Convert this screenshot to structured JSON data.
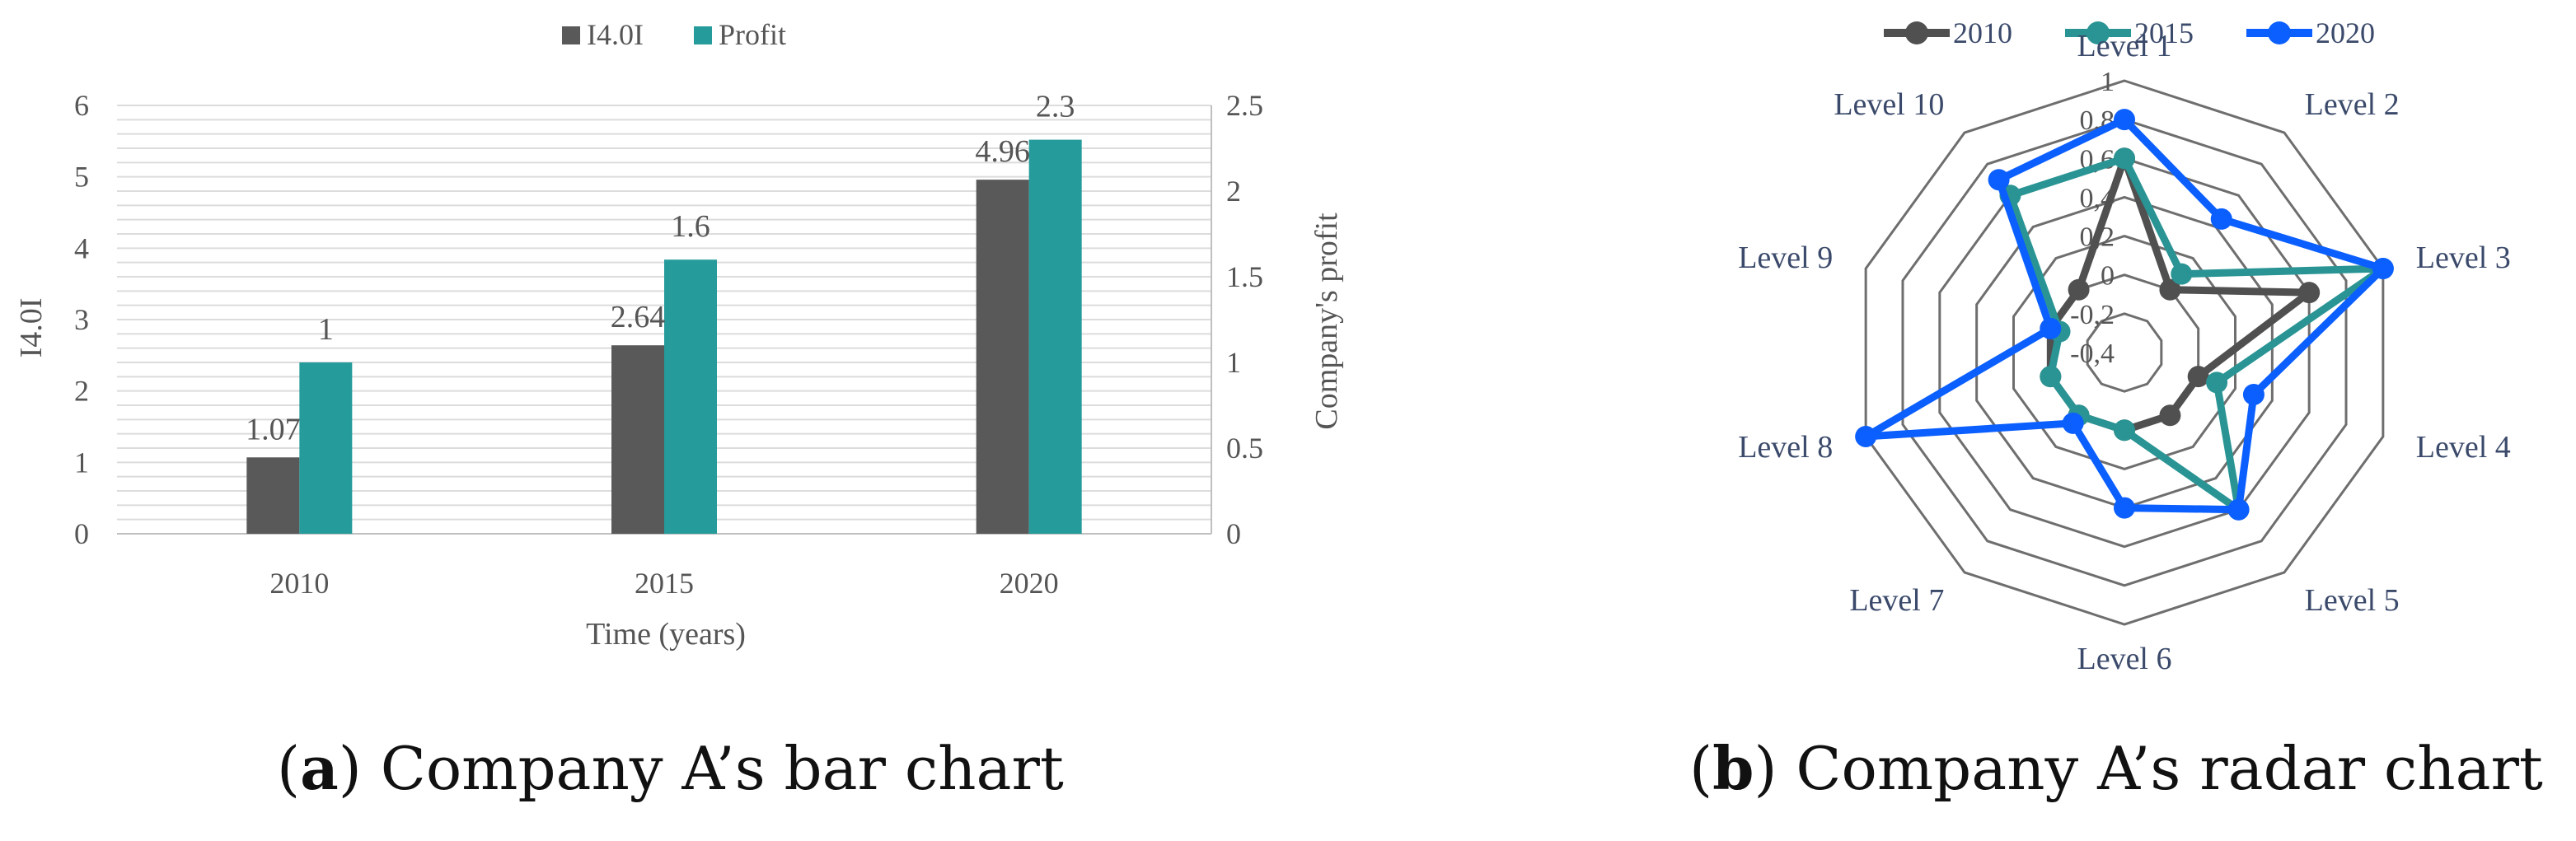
{
  "colors": {
    "i40i": "#595959",
    "profit": "#259b9b",
    "r2010": "#505050",
    "r2015": "#2a9494",
    "r2020": "#0b5fff",
    "grid": "#dcdcdc",
    "axis_text": "#555555",
    "radar_label": "#3b4a6b",
    "radar_ring": "#6e6e6e"
  },
  "captions": {
    "a_letter": "a",
    "a_text": "Company A’s bar chart",
    "b_letter": "b",
    "b_text": "Company A’s radar chart"
  },
  "chart_data": [
    {
      "type": "bar",
      "categories": [
        "2010",
        "2015",
        "2020"
      ],
      "series": [
        {
          "name": "I4.0I",
          "axis": "left",
          "values": [
            1.07,
            2.64,
            4.96
          ],
          "labels": [
            "1.07",
            "2.64",
            "4.96"
          ]
        },
        {
          "name": "Profit",
          "axis": "right",
          "values": [
            1,
            1.6,
            2.3
          ],
          "labels": [
            "1",
            "1.6",
            "2.3"
          ]
        }
      ],
      "xlabel": "Time (years)",
      "ylabel": "I4.0I",
      "ylabel_right": "Company's profit",
      "ylim": [
        0,
        6
      ],
      "ylim_right": [
        0,
        2.5
      ],
      "yticks": [
        "0",
        "1",
        "2",
        "3",
        "4",
        "5",
        "6"
      ],
      "yticks_right": [
        "0",
        "0.5",
        "1",
        "1.5",
        "2",
        "2.5"
      ],
      "grid": true,
      "legend": "top-center"
    },
    {
      "type": "radar",
      "axes": [
        "Level 1",
        "Level 2",
        "Level 3",
        "Level 4",
        "Level 5",
        "Level 6",
        "Level 7",
        "Level 8",
        "Level 9",
        "Level 10"
      ],
      "rlim": [
        -0.4,
        1
      ],
      "rticks": [
        "-0,4",
        "-0,2",
        "0",
        "0,2",
        "0,4",
        "0,6",
        "0,8",
        "1"
      ],
      "series": [
        {
          "name": "2010",
          "values": [
            0.6,
            0.0,
            0.6,
            0.0,
            0.0,
            0.0,
            0.0,
            0.0,
            0.0,
            0.0
          ]
        },
        {
          "name": "2015",
          "values": [
            0.6,
            0.1,
            1.0,
            0.1,
            0.6,
            0.0,
            0.0,
            0.0,
            -0.05,
            0.6
          ]
        },
        {
          "name": "2020",
          "values": [
            0.8,
            0.45,
            1.0,
            0.3,
            0.6,
            0.4,
            0.05,
            1.0,
            0.0,
            0.7
          ]
        }
      ],
      "legend": "top-center"
    }
  ]
}
